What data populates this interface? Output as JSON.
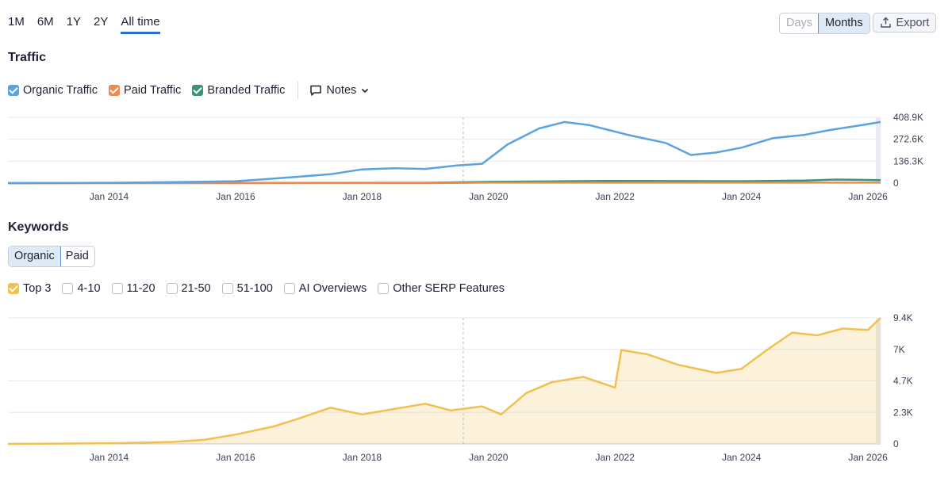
{
  "range_tabs": [
    {
      "label": "1M",
      "active": false
    },
    {
      "label": "6M",
      "active": false
    },
    {
      "label": "1Y",
      "active": false
    },
    {
      "label": "2Y",
      "active": false
    },
    {
      "label": "All time",
      "active": true
    }
  ],
  "granularity": {
    "days_label": "Days",
    "months_label": "Months",
    "selected": "Months"
  },
  "export_label": "Export",
  "traffic": {
    "title": "Traffic",
    "legend": [
      {
        "label": "Organic Traffic",
        "checked": true,
        "color": "#5aa3e3"
      },
      {
        "label": "Paid Traffic",
        "checked": true,
        "color": "#f0894b"
      },
      {
        "label": "Branded Traffic",
        "checked": true,
        "color": "#3a9378"
      }
    ],
    "notes_label": "Notes"
  },
  "keywords": {
    "title": "Keywords",
    "tabs": [
      {
        "label": "Organic",
        "active": true
      },
      {
        "label": "Paid",
        "active": false
      }
    ],
    "filters": [
      {
        "label": "Top 3",
        "checked": true,
        "color": "#f2c04f"
      },
      {
        "label": "4-10",
        "checked": false
      },
      {
        "label": "11-20",
        "checked": false
      },
      {
        "label": "21-50",
        "checked": false
      },
      {
        "label": "51-100",
        "checked": false
      },
      {
        "label": "AI Overviews",
        "checked": false
      },
      {
        "label": "Other SERP Features",
        "checked": false
      }
    ]
  },
  "chart_data": [
    {
      "type": "line",
      "x_ticks": [
        "Jan 2014",
        "Jan 2016",
        "Jan 2018",
        "Jan 2020",
        "Jan 2022",
        "Jan 2024",
        "Jan 2026"
      ],
      "y_ticks": [
        "0",
        "136.3K",
        "272.6K",
        "408.9K"
      ],
      "ylim": [
        0,
        408900
      ],
      "xlim": [
        2012.4,
        2026.2
      ],
      "grid": true,
      "marker_line_x": 2019.6,
      "series": [
        {
          "name": "Organic Traffic",
          "color": "#5aa3e3",
          "x": [
            2012.4,
            2014.0,
            2015.0,
            2016.0,
            2016.5,
            2017.0,
            2017.5,
            2018.0,
            2018.5,
            2019.0,
            2019.5,
            2019.9,
            2020.3,
            2020.8,
            2021.2,
            2021.6,
            2022.2,
            2022.8,
            2023.2,
            2023.6,
            2024.0,
            2024.5,
            2025.0,
            2025.4,
            2025.9,
            2026.2
          ],
          "values": [
            0,
            2000,
            6000,
            12000,
            25000,
            40000,
            55000,
            85000,
            92000,
            88000,
            110000,
            120000,
            240000,
            340000,
            380000,
            360000,
            300000,
            250000,
            175000,
            190000,
            220000,
            280000,
            300000,
            330000,
            360000,
            380000
          ]
        },
        {
          "name": "Paid Traffic",
          "color": "#f0894b",
          "x": [
            2012.4,
            2019.0,
            2020.0,
            2026.2
          ],
          "values": [
            0,
            0,
            3000,
            3000
          ]
        },
        {
          "name": "Branded Traffic",
          "color": "#3a9378",
          "x": [
            2012.4,
            2019.0,
            2020.0,
            2022.0,
            2024.0,
            2025.0,
            2025.5,
            2026.2
          ],
          "values": [
            0,
            2000,
            8000,
            14000,
            12000,
            16000,
            22000,
            18000
          ]
        }
      ]
    },
    {
      "type": "area",
      "x_ticks": [
        "Jan 2014",
        "Jan 2016",
        "Jan 2018",
        "Jan 2020",
        "Jan 2022",
        "Jan 2024",
        "Jan 2026"
      ],
      "y_ticks": [
        "0",
        "2.3K",
        "4.7K",
        "7K",
        "9.4K"
      ],
      "ylim": [
        0,
        9400
      ],
      "xlim": [
        2012.4,
        2026.2
      ],
      "grid": true,
      "marker_line_x": 2019.6,
      "series": [
        {
          "name": "Top 3",
          "color": "#f2c04f",
          "x": [
            2012.4,
            2014.0,
            2015.0,
            2015.5,
            2016.0,
            2016.6,
            2017.0,
            2017.5,
            2018.0,
            2018.5,
            2019.0,
            2019.4,
            2019.9,
            2020.2,
            2020.6,
            2021.0,
            2021.5,
            2022.0,
            2022.1,
            2022.5,
            2023.0,
            2023.6,
            2024.0,
            2024.4,
            2024.8,
            2025.2,
            2025.6,
            2026.0,
            2026.2
          ],
          "values": [
            0,
            50,
            150,
            300,
            700,
            1300,
            1900,
            2700,
            2200,
            2600,
            3000,
            2500,
            2800,
            2200,
            3800,
            4600,
            5000,
            4200,
            7000,
            6700,
            5900,
            5300,
            5600,
            7000,
            8300,
            8100,
            8600,
            8500,
            9400
          ]
        }
      ]
    }
  ]
}
